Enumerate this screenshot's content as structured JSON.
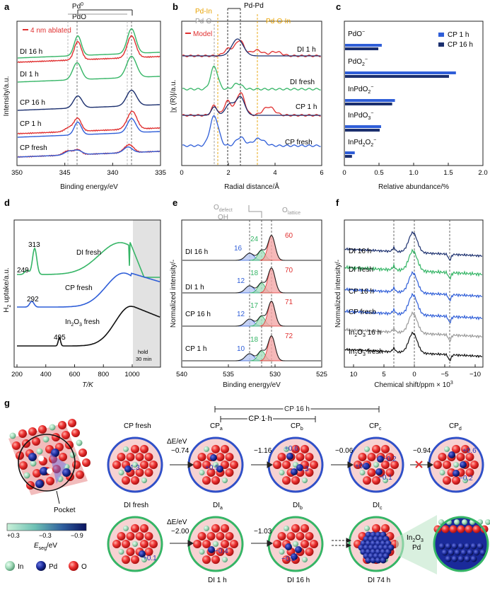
{
  "panel_labels": {
    "a": "a",
    "b": "b",
    "c": "c",
    "d": "d",
    "e": "e",
    "f": "f",
    "g": "g"
  },
  "colors": {
    "red": "#e03030",
    "green": "#35b566",
    "navy": "#1b2f6e",
    "blue": "#2f5ed8",
    "gray": "#999999",
    "gold": "#e8a200",
    "pink": "#f4a7a7",
    "light_blue": "#b7c7f2"
  },
  "panel_a": {
    "ylabel": "Intensity/a.u.",
    "xlabel": "Binding energy/eV",
    "xticks": [
      "350",
      "345",
      "340",
      "335"
    ],
    "legend": "4 nm ablated",
    "ref_pd0": "Pd",
    "ref_pd0_sup": "0",
    "ref_pdo": "PdO",
    "traces": [
      "DI 16 h",
      "DI 1 h",
      "CP 16 h",
      "CP 1 h",
      "CP fresh"
    ]
  },
  "panel_b": {
    "ylabel": "|χ (R)|/a.u.",
    "xlabel": "Radial distance/Å",
    "xticks": [
      "0",
      "2",
      "4",
      "6"
    ],
    "legend": "Model",
    "refs": [
      "Pd-In",
      "Pd-Pd",
      "Pd-O",
      "Pd-O-In"
    ],
    "traces": [
      "DI 1 h",
      "DI fresh",
      "CP 1 h",
      "CP fresh"
    ]
  },
  "panel_c": {
    "xlabel": "Relative abundance/%",
    "xticks": [
      "0",
      "0.5",
      "1.0",
      "1.5",
      "2.0"
    ],
    "species": [
      {
        "label": "PdO",
        "sup": "−",
        "sub": ""
      },
      {
        "label": "PdO",
        "sub": "2",
        "sup": "−"
      },
      {
        "label": "InPdO",
        "sub": "2",
        "sup": "−"
      },
      {
        "label": "InPdO",
        "sub": "3",
        "sup": "−"
      },
      {
        "label": "InPd",
        "sub": "2",
        "label2": "O",
        "sub2": "2",
        "sup": "−"
      }
    ],
    "chart_data": {
      "type": "bar",
      "categories": [
        "PdO−",
        "PdO2−",
        "InPdO2−",
        "InPdO3−",
        "InPd2O2−"
      ],
      "series": [
        {
          "name": "CP 1 h",
          "values": [
            0.53,
            1.6,
            0.72,
            0.52,
            0.14
          ]
        },
        {
          "name": "CP 16 h",
          "values": [
            0.48,
            1.5,
            0.68,
            0.5,
            0.1
          ]
        }
      ],
      "xlabel": "Relative abundance/%",
      "xlim": [
        0,
        2.0
      ],
      "legend": "top-right"
    }
  },
  "panel_d": {
    "ylabel": "H",
    "ylabel_sub": "2",
    "ylabel_rest": " uptake/a.u.",
    "xlabel": "T/K",
    "xticks": [
      "200",
      "300",
      "400",
      "500",
      "600",
      "700",
      "800",
      "900",
      "1000"
    ],
    "hold": "hold",
    "hold2": "30 min",
    "traces": [
      "DI fresh",
      "CP fresh",
      "In"
    ],
    "in2o3_sub1": "2",
    "in2o3_mid": "O",
    "in2o3_sub2": "3",
    "in2o3_rest": " fresh",
    "peaks": [
      "313",
      "249",
      "292",
      "495"
    ]
  },
  "panel_e": {
    "ylabel": "Normalized intensity/-",
    "xlabel": "Binding energy/eV",
    "xticks": [
      "540",
      "535",
      "530",
      "525"
    ],
    "odefect": "O",
    "odefect_sub": "defect",
    "oh": "OH",
    "olattice": "O",
    "olattice_sub": "lattice",
    "rows": [
      {
        "name": "DI 16 h",
        "blue": "16",
        "green": "24",
        "red": "60"
      },
      {
        "name": "DI 1 h",
        "blue": "12",
        "green": "18",
        "red": "70"
      },
      {
        "name": "CP 16 h",
        "blue": "12",
        "green": "17",
        "red": "71"
      },
      {
        "name": "CP 1 h",
        "blue": "10",
        "green": "18",
        "red": "72"
      }
    ]
  },
  "panel_f": {
    "ylabel": "Normalized intensity/-",
    "xlabel": "Chemical shift/ppm × 10",
    "xlabel_sup": "3",
    "xticks": [
      "10",
      "5",
      "0",
      "−5",
      "−10"
    ],
    "traces": [
      "DI 16 h",
      "DI fresh",
      "CP 16 h",
      "CP fresh",
      "In"
    ],
    "in_labels": [
      {
        "a": "In",
        "s1": "2",
        "b": "O",
        "s2": "3",
        "c": " 16 h"
      },
      {
        "a": "In",
        "s1": "2",
        "b": "O",
        "s2": "3",
        "c": " fresh"
      }
    ]
  },
  "panel_g": {
    "pocket": "Pocket",
    "cbar_ticks": [
      "+0.3",
      "−0.3",
      "−0.9"
    ],
    "cbar_label": "E",
    "cbar_sub": "seg",
    "cbar_unit": "/eV",
    "legend": [
      "In",
      "Pd",
      "O"
    ],
    "dE": "ΔE/eV",
    "bracket_cp16": "CP 16 h",
    "bracket_cp1": "CP 1 h",
    "top_labels": [
      {
        "a": "CP fresh",
        "s": ""
      },
      {
        "a": "CP",
        "s": "a"
      },
      {
        "a": "CP",
        "s": "b"
      },
      {
        "a": "CP",
        "s": "c"
      },
      {
        "a": "CP",
        "s": "d"
      }
    ],
    "top_steps": [
      "−0.74",
      "−1.16",
      "−0.06",
      "−0.94"
    ],
    "top_values": [
      "+1.3",
      "+0.5",
      "+0.6",
      "−0.3",
      "+0.6",
      "−0.2",
      "−0.1",
      "+0.6",
      "−0.2"
    ],
    "bottom_labels": [
      {
        "a": "DI fresh",
        "s": ""
      },
      {
        "a": "DI",
        "s": "a"
      },
      {
        "a": "DI",
        "s": "b"
      },
      {
        "a": "DI",
        "s": "c"
      }
    ],
    "bottom_steps": [
      "−2.00",
      "−1.03"
    ],
    "bottom_values": [
      "+0.1",
      "−0.4",
      "−0.3"
    ],
    "bottom_times": [
      "DI 1 h",
      "DI 16 h",
      "DI 74 h"
    ],
    "inset_l1": "In",
    "inset_s1": "2",
    "inset_l2": "O",
    "inset_s2": "3",
    "inset_l3": "Pd"
  }
}
